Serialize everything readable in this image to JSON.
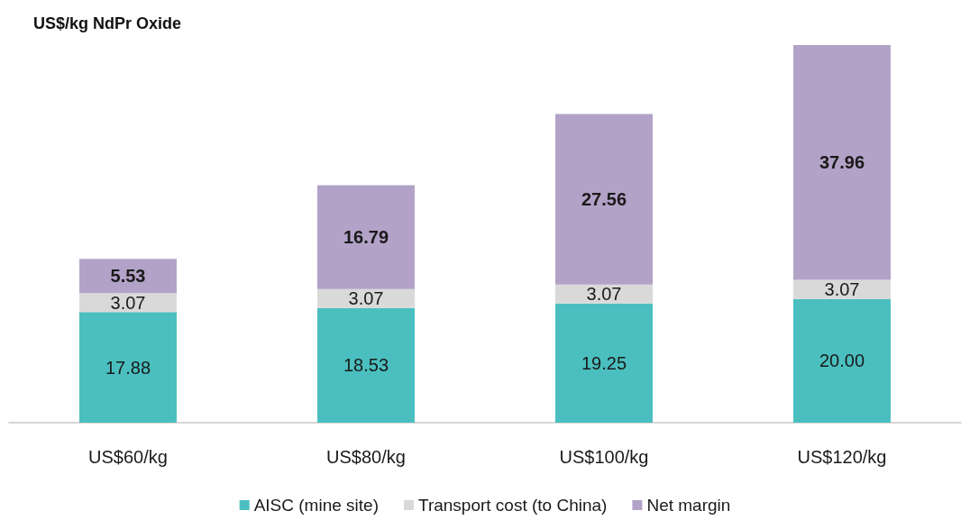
{
  "chart_data": {
    "type": "bar",
    "ylabel": "US$/kg NdPr Oxide",
    "categories": [
      "US$60/kg",
      "US$80/kg",
      "US$100/kg",
      "US$120/kg"
    ],
    "stacked": true,
    "data_labels": true,
    "legend": "bottom",
    "series": [
      {
        "name": "AISC (mine site)",
        "color": "#4bbfbf",
        "values": [
          17.88,
          18.53,
          19.25,
          20.0
        ],
        "value_labels": [
          "17.88",
          "18.53",
          "19.25",
          "20.00"
        ]
      },
      {
        "name": "Transport cost (to China)",
        "color": "#d9d9d9",
        "values": [
          3.07,
          3.07,
          3.07,
          3.07
        ]
      },
      {
        "name": "Net margin",
        "color": "#b3a2c7",
        "values": [
          5.53,
          16.79,
          27.56,
          37.96
        ]
      }
    ]
  }
}
